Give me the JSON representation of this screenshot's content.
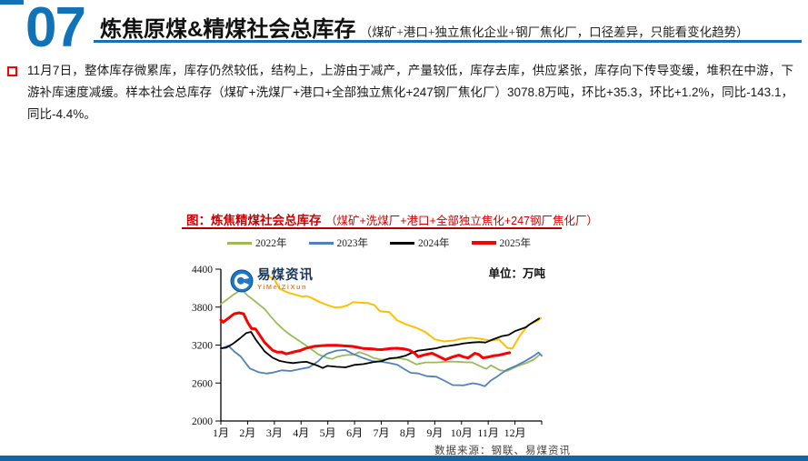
{
  "header": {
    "number": "07",
    "title": "炼焦原煤&精煤社会总库存",
    "subtitle": "（煤矿+港口+独立焦化企业+钢厂焦化厂，口径差异，只能看变化趋势）"
  },
  "body": {
    "bullet_text": "11月7日，整体库存微累库，库存仍然较低，结构上，上游由于减产，产量较低，库存去库，供应紧张，库存向下传导变缓，堆积在中游，下游补库速度减缓。样本社会总库存（煤矿+洗煤厂+港口+全部独立焦化+247钢厂焦化厂）3078.8万吨，环比+35.3，环比+1.2%，同比-143.1，同比-4.4%。"
  },
  "chart": {
    "title_prefix": "图：炼焦精煤社会总库存",
    "title_suffix": "（煤矿+洗煤厂+港口+全部独立焦化+247钢厂焦化厂）",
    "unit_label": "单位：万吨",
    "source": "数据来源：钢联、易煤资讯",
    "watermark": {
      "name": "易煤资讯",
      "sub": "YiMeiZiXun"
    }
  },
  "colors": {
    "accent_blue": "#1272B8",
    "bottom_bar": "#1464A8",
    "title_red": "#D00000",
    "bullet_red": "#FF0000"
  },
  "chart_data": {
    "type": "line",
    "title": "炼焦精煤社会总库存（煤矿+洗煤厂+港口+全部独立焦化+247钢厂焦化厂）",
    "xlabel": "",
    "ylabel": "万吨",
    "ylim": [
      2000,
      4400
    ],
    "yticks": [
      4400,
      3800,
      3200,
      2600,
      2000
    ],
    "x_range": [
      1,
      13
    ],
    "xtick_labels": [
      "1月",
      "2月",
      "3月",
      "4月",
      "5月",
      "6月",
      "7月",
      "8月",
      "9月",
      "10月",
      "11月",
      "12月"
    ],
    "grid": false,
    "legend_position": "top",
    "series": [
      {
        "name": "",
        "color": "#FFC000",
        "width": 2,
        "in_legend": false,
        "points": [
          [
            2.45,
            4400
          ],
          [
            2.7,
            4310
          ],
          [
            3.0,
            4240
          ],
          [
            3.2,
            4090
          ],
          [
            3.5,
            4030
          ],
          [
            3.8,
            3995
          ],
          [
            4.05,
            3965
          ],
          [
            4.2,
            3975
          ],
          [
            4.4,
            3945
          ],
          [
            4.7,
            3880
          ],
          [
            5.0,
            3830
          ],
          [
            5.25,
            3795
          ],
          [
            5.5,
            3800
          ],
          [
            5.75,
            3830
          ],
          [
            5.95,
            3880
          ],
          [
            6.2,
            3870
          ],
          [
            6.5,
            3865
          ],
          [
            6.75,
            3830
          ],
          [
            6.95,
            3735
          ],
          [
            7.3,
            3720
          ],
          [
            7.6,
            3590
          ],
          [
            7.97,
            3520
          ],
          [
            8.3,
            3475
          ],
          [
            8.65,
            3405
          ],
          [
            9.0,
            3290
          ],
          [
            9.35,
            3258
          ],
          [
            9.7,
            3272
          ],
          [
            10.0,
            3300
          ],
          [
            10.35,
            3316
          ],
          [
            10.7,
            3300
          ],
          [
            11.05,
            3272
          ],
          [
            11.4,
            3287
          ],
          [
            11.72,
            3156
          ],
          [
            11.9,
            3142
          ],
          [
            12.2,
            3360
          ],
          [
            12.5,
            3520
          ],
          [
            12.87,
            3590
          ],
          [
            12.97,
            3630
          ]
        ]
      },
      {
        "name": "2022年",
        "color": "#9BBB59",
        "width": 1.8,
        "in_legend": true,
        "points": [
          [
            1.0,
            3850
          ],
          [
            1.2,
            3910
          ],
          [
            1.45,
            3990
          ],
          [
            1.7,
            4060
          ],
          [
            1.85,
            4050
          ],
          [
            2.0,
            3980
          ],
          [
            2.2,
            3920
          ],
          [
            2.4,
            3850
          ],
          [
            2.64,
            3770
          ],
          [
            2.87,
            3650
          ],
          [
            3.1,
            3540
          ],
          [
            3.38,
            3430
          ],
          [
            3.6,
            3360
          ],
          [
            3.95,
            3260
          ],
          [
            4.3,
            3160
          ],
          [
            4.65,
            3050
          ],
          [
            5.0,
            2995
          ],
          [
            5.15,
            2980
          ],
          [
            5.35,
            3015
          ],
          [
            5.65,
            3040
          ],
          [
            6.0,
            3050
          ],
          [
            6.17,
            3090
          ],
          [
            6.5,
            3040
          ],
          [
            6.68,
            3000
          ],
          [
            7.0,
            2968
          ],
          [
            7.3,
            2980
          ],
          [
            7.63,
            2997
          ],
          [
            7.97,
            2968
          ],
          [
            8.31,
            2896
          ],
          [
            8.65,
            2925
          ],
          [
            9.06,
            2925
          ],
          [
            9.4,
            2935
          ],
          [
            9.7,
            2940
          ],
          [
            10.1,
            2930
          ],
          [
            10.4,
            2925
          ],
          [
            10.76,
            2853
          ],
          [
            10.93,
            2824
          ],
          [
            11.1,
            2880
          ],
          [
            11.45,
            2800
          ],
          [
            11.7,
            2790
          ],
          [
            12.1,
            2870
          ],
          [
            12.45,
            2920
          ],
          [
            12.7,
            2970
          ],
          [
            12.9,
            3040
          ]
        ]
      },
      {
        "name": "2023年",
        "color": "#4F81BD",
        "width": 1.8,
        "in_legend": true,
        "points": [
          [
            1.0,
            3140
          ],
          [
            1.28,
            3190
          ],
          [
            1.5,
            3100
          ],
          [
            1.74,
            3020
          ],
          [
            2.08,
            2830
          ],
          [
            2.42,
            2770
          ],
          [
            2.7,
            2750
          ],
          [
            2.94,
            2765
          ],
          [
            3.28,
            2800
          ],
          [
            3.62,
            2790
          ],
          [
            3.96,
            2820
          ],
          [
            4.3,
            2848
          ],
          [
            4.64,
            2944
          ],
          [
            4.81,
            3016
          ],
          [
            4.98,
            3065
          ],
          [
            5.32,
            3113
          ],
          [
            5.66,
            3123
          ],
          [
            5.85,
            3080
          ],
          [
            6.0,
            3051
          ],
          [
            6.34,
            2993
          ],
          [
            6.68,
            2944
          ],
          [
            7.02,
            2935
          ],
          [
            7.3,
            2915
          ],
          [
            7.6,
            2890
          ],
          [
            7.9,
            2810
          ],
          [
            8.1,
            2762
          ],
          [
            8.38,
            2751
          ],
          [
            8.7,
            2708
          ],
          [
            9.06,
            2700
          ],
          [
            9.35,
            2640
          ],
          [
            9.67,
            2568
          ],
          [
            10.08,
            2563
          ],
          [
            10.42,
            2597
          ],
          [
            10.65,
            2580
          ],
          [
            10.87,
            2549
          ],
          [
            11.1,
            2640
          ],
          [
            11.35,
            2708
          ],
          [
            11.69,
            2809
          ],
          [
            12.03,
            2871
          ],
          [
            12.37,
            2944
          ],
          [
            12.71,
            3030
          ],
          [
            12.88,
            3084
          ],
          [
            13.0,
            3030
          ]
        ]
      },
      {
        "name": "2024年",
        "color": "#000000",
        "width": 1.8,
        "in_legend": true,
        "points": [
          [
            1.0,
            3150
          ],
          [
            1.2,
            3160
          ],
          [
            1.45,
            3220
          ],
          [
            1.7,
            3300
          ],
          [
            1.95,
            3390
          ],
          [
            2.13,
            3408
          ],
          [
            2.3,
            3290
          ],
          [
            2.64,
            3100
          ],
          [
            2.93,
            3001
          ],
          [
            3.2,
            2950
          ],
          [
            3.44,
            2929
          ],
          [
            3.7,
            2915
          ],
          [
            3.96,
            2929
          ],
          [
            4.2,
            2935
          ],
          [
            4.45,
            2900
          ],
          [
            4.64,
            2871
          ],
          [
            4.81,
            2838
          ],
          [
            4.98,
            2871
          ],
          [
            5.32,
            2857
          ],
          [
            5.66,
            2848
          ],
          [
            6.0,
            2886
          ],
          [
            6.34,
            2900
          ],
          [
            6.68,
            2929
          ],
          [
            7.02,
            2948
          ],
          [
            7.3,
            2990
          ],
          [
            7.6,
            3000
          ],
          [
            7.9,
            3030
          ],
          [
            8.1,
            3070
          ],
          [
            8.38,
            3113
          ],
          [
            8.65,
            3125
          ],
          [
            8.9,
            3140
          ],
          [
            9.06,
            3150
          ],
          [
            9.3,
            3175
          ],
          [
            9.5,
            3185
          ],
          [
            9.8,
            3205
          ],
          [
            10.1,
            3228
          ],
          [
            10.4,
            3240
          ],
          [
            10.66,
            3247
          ],
          [
            10.9,
            3240
          ],
          [
            11.2,
            3294
          ],
          [
            11.5,
            3340
          ],
          [
            11.76,
            3360
          ],
          [
            12.0,
            3420
          ],
          [
            12.4,
            3480
          ],
          [
            12.6,
            3540
          ],
          [
            12.9,
            3620
          ]
        ]
      },
      {
        "name": "2025年",
        "color": "#FF0000",
        "width": 3,
        "in_legend": true,
        "points": [
          [
            1.0,
            3600
          ],
          [
            1.08,
            3560
          ],
          [
            1.3,
            3630
          ],
          [
            1.5,
            3695
          ],
          [
            1.68,
            3710
          ],
          [
            1.85,
            3695
          ],
          [
            2.0,
            3560
          ],
          [
            2.15,
            3460
          ],
          [
            2.3,
            3455
          ],
          [
            2.64,
            3240
          ],
          [
            2.93,
            3120
          ],
          [
            3.1,
            3088
          ],
          [
            3.27,
            3090
          ],
          [
            3.44,
            3060
          ],
          [
            3.62,
            3080
          ],
          [
            3.8,
            3100
          ],
          [
            3.96,
            3113
          ],
          [
            4.15,
            3145
          ],
          [
            4.3,
            3161
          ],
          [
            4.5,
            3180
          ],
          [
            4.64,
            3185
          ],
          [
            4.98,
            3195
          ],
          [
            5.32,
            3195
          ],
          [
            5.66,
            3185
          ],
          [
            5.9,
            3180
          ],
          [
            6.1,
            3165
          ],
          [
            6.34,
            3146
          ],
          [
            6.68,
            3140
          ],
          [
            6.85,
            3130
          ],
          [
            7.02,
            3128
          ],
          [
            7.35,
            3145
          ],
          [
            7.6,
            3150
          ],
          [
            7.85,
            3140
          ],
          [
            8.05,
            3120
          ],
          [
            8.25,
            3070
          ],
          [
            8.38,
            3016
          ],
          [
            8.6,
            3045
          ],
          [
            8.9,
            3070
          ],
          [
            9.1,
            3030
          ],
          [
            9.4,
            2968
          ],
          [
            9.65,
            3010
          ],
          [
            9.9,
            3041
          ],
          [
            10.1,
            3010
          ],
          [
            10.25,
            2997
          ],
          [
            10.5,
            3070
          ],
          [
            10.65,
            3050
          ],
          [
            10.8,
            2997
          ],
          [
            11.0,
            3012
          ],
          [
            11.2,
            3030
          ],
          [
            11.4,
            3041
          ],
          [
            11.6,
            3060
          ],
          [
            11.8,
            3079
          ]
        ]
      }
    ]
  }
}
